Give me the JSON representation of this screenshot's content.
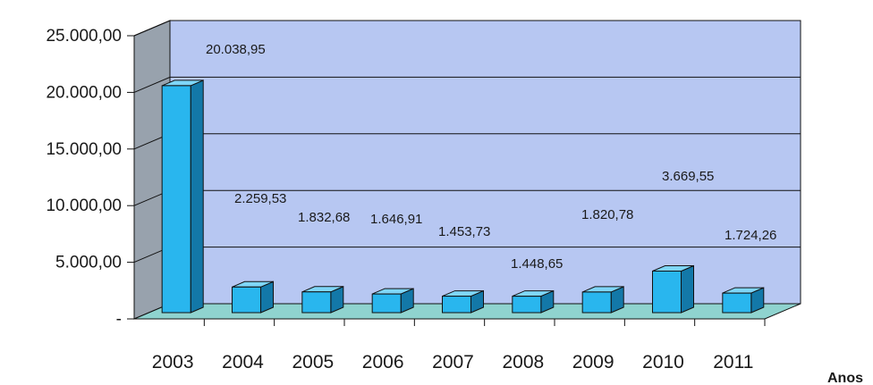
{
  "chart_data": {
    "type": "bar",
    "title": "",
    "xlabel": "Anos",
    "ylabel": "",
    "categories": [
      "2003",
      "2004",
      "2005",
      "2006",
      "2007",
      "2008",
      "2009",
      "2010",
      "2011"
    ],
    "values": [
      20038.95,
      2259.53,
      1832.68,
      1646.91,
      1453.73,
      1448.65,
      1820.78,
      3669.55,
      1724.26
    ],
    "data_labels": [
      "20.038,95",
      "2.259,53",
      "1.832,68",
      "1.646,91",
      "1.453,73",
      "1.448,65",
      "1.820,78",
      "3.669,55",
      "1.724,26"
    ],
    "ylim": [
      0,
      25000
    ],
    "yticks": [
      0,
      5000,
      10000,
      15000,
      20000,
      25000
    ],
    "ytick_labels": [
      "-",
      "5.000,00",
      "10.000,00",
      "15.000,00",
      "20.000,00",
      "25.000,00"
    ],
    "grid": true,
    "legend": "none",
    "style": "3d-column",
    "colors": {
      "bar_front": "#29b6ee",
      "bar_top": "#7fd6f8",
      "bar_side": "#1378a8",
      "back_wall": "#b7c7f2",
      "side_wall": "#98a2ad",
      "floor": "#8fd3cf",
      "edge": "#111111"
    }
  }
}
